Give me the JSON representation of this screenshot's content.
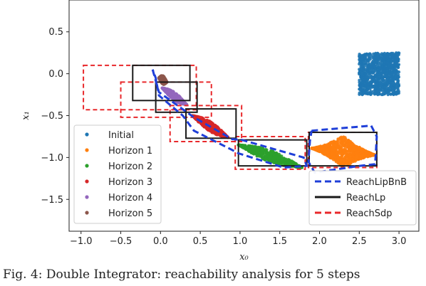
{
  "caption": "Fig. 4:  Double Integrator: reachability analysis for 5 steps",
  "chart_data": {
    "type": "scatter",
    "xlabel": "x₀",
    "ylabel": "x₁",
    "xlim": [
      -1.15,
      3.25
    ],
    "ylim": [
      -1.88,
      0.88
    ],
    "xticks": [
      -1.0,
      -0.5,
      0.0,
      0.5,
      1.0,
      1.5,
      2.0,
      2.5,
      3.0
    ],
    "yticks": [
      0.5,
      0.0,
      -0.5,
      -1.0,
      -1.5
    ],
    "xtick_labels": [
      "−1.0",
      "−0.5",
      "0.0",
      "0.5",
      "1.0",
      "1.5",
      "2.0",
      "2.5",
      "3.0"
    ],
    "ytick_labels": [
      "0.5",
      "0.0",
      "−0.5",
      "−1.0",
      "−1.5"
    ],
    "grid": false,
    "series": [
      {
        "name": "Initial",
        "color": "#1f77b4",
        "shape": "box",
        "x_range": [
          2.5,
          3.0
        ],
        "y_range": [
          -0.25,
          0.25
        ]
      },
      {
        "name": "Horizon 1",
        "color": "#ff7f0e",
        "shape": "ellipse",
        "center": [
          2.3,
          -0.93
        ],
        "extent_x": [
          1.9,
          2.7
        ],
        "extent_y": [
          -1.1,
          -0.72
        ]
      },
      {
        "name": "Horizon 2",
        "color": "#2ca02c",
        "shape": "band",
        "from": [
          0.98,
          -0.85
        ],
        "to": [
          1.78,
          -1.12
        ],
        "width": 0.07
      },
      {
        "name": "Horizon 3",
        "color": "#d62728",
        "shape": "band",
        "from": [
          0.4,
          -0.5
        ],
        "to": [
          0.85,
          -0.76
        ],
        "width": 0.06
      },
      {
        "name": "Horizon 4",
        "color": "#9467bd",
        "shape": "band",
        "from": [
          0.02,
          -0.17
        ],
        "to": [
          0.33,
          -0.37
        ],
        "width": 0.05
      },
      {
        "name": "Horizon 5",
        "color": "#8c564b",
        "shape": "band",
        "from": [
          -0.02,
          -0.05
        ],
        "to": [
          0.08,
          -0.1
        ],
        "width": 0.05
      }
    ],
    "reach_boxes": {
      "ReachLp": [
        {
          "x": [
            -0.35,
            0.37
          ],
          "y": [
            -0.32,
            0.1
          ]
        },
        {
          "x": [
            -0.06,
            0.46
          ],
          "y": [
            -0.46,
            -0.1
          ]
        },
        {
          "x": [
            0.32,
            0.95
          ],
          "y": [
            -0.77,
            -0.42
          ]
        },
        {
          "x": [
            0.98,
            1.84
          ],
          "y": [
            -1.1,
            -0.79
          ]
        },
        {
          "x": [
            1.87,
            2.72
          ],
          "y": [
            -1.1,
            -0.7
          ]
        }
      ],
      "ReachSdp": [
        {
          "x": [
            -0.97,
            0.45
          ],
          "y": [
            -0.43,
            0.1
          ]
        },
        {
          "x": [
            -0.5,
            0.64
          ],
          "y": [
            -0.52,
            -0.1
          ]
        },
        {
          "x": [
            0.12,
            1.02
          ],
          "y": [
            -0.81,
            -0.38
          ]
        },
        {
          "x": [
            0.94,
            1.82
          ],
          "y": [
            -1.14,
            -0.75
          ]
        },
        {
          "x": [
            1.86,
            2.72
          ],
          "y": [
            -1.12,
            -0.7
          ]
        }
      ],
      "ReachLipBnB": [
        [
          [
            -0.1,
            0.05
          ],
          [
            -0.02,
            -0.22
          ],
          [
            0.42,
            -0.52
          ],
          [
            0.9,
            -0.78
          ],
          [
            1.02,
            -0.79
          ],
          [
            1.8,
            -1.0
          ],
          [
            1.84,
            -1.1
          ],
          [
            1.55,
            -1.12
          ],
          [
            0.98,
            -0.95
          ],
          [
            0.88,
            -0.9
          ],
          [
            0.42,
            -0.68
          ],
          [
            0.28,
            -0.5
          ],
          [
            -0.02,
            -0.26
          ],
          [
            -0.06,
            -0.05
          ],
          [
            -0.1,
            0.05
          ]
        ],
        [
          [
            1.9,
            -0.68
          ],
          [
            2.65,
            -0.62
          ],
          [
            2.72,
            -0.75
          ],
          [
            2.7,
            -1.08
          ],
          [
            2.5,
            -1.1
          ],
          [
            1.94,
            -1.18
          ],
          [
            1.86,
            -1.05
          ],
          [
            1.88,
            -0.8
          ],
          [
            1.9,
            -0.68
          ]
        ]
      ]
    },
    "legends": [
      {
        "position": "lower-left",
        "entries": [
          "Initial",
          "Horizon 1",
          "Horizon 2",
          "Horizon 3",
          "Horizon 4",
          "Horizon 5"
        ]
      },
      {
        "position": "lower-right",
        "entries": [
          "ReachLipBnB",
          "ReachLp",
          "ReachSdp"
        ]
      }
    ],
    "line_styles": {
      "ReachLipBnB": {
        "color": "#1f3fd8",
        "dash": "dashed"
      },
      "ReachLp": {
        "color": "#1a1a1a",
        "dash": "solid"
      },
      "ReachSdp": {
        "color": "#e8282b",
        "dash": "dashed"
      }
    }
  }
}
